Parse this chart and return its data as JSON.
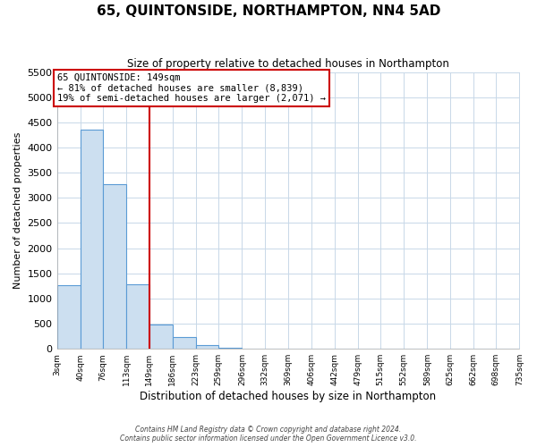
{
  "title": "65, QUINTONSIDE, NORTHAMPTON, NN4 5AD",
  "subtitle": "Size of property relative to detached houses in Northampton",
  "xlabel": "Distribution of detached houses by size in Northampton",
  "ylabel": "Number of detached properties",
  "bin_edges": [
    3,
    40,
    76,
    113,
    149,
    186,
    223,
    259,
    296,
    332,
    369,
    406,
    442,
    479,
    515,
    552,
    589,
    625,
    662,
    698,
    735
  ],
  "bin_labels": [
    "3sqm",
    "40sqm",
    "76sqm",
    "113sqm",
    "149sqm",
    "186sqm",
    "223sqm",
    "259sqm",
    "296sqm",
    "332sqm",
    "369sqm",
    "406sqm",
    "442sqm",
    "479sqm",
    "515sqm",
    "552sqm",
    "589sqm",
    "625sqm",
    "662sqm",
    "698sqm",
    "735sqm"
  ],
  "counts": [
    1270,
    4350,
    3280,
    1280,
    480,
    230,
    80,
    30,
    10,
    5,
    0,
    0,
    0,
    0,
    0,
    0,
    0,
    0,
    0,
    0
  ],
  "bar_color": "#ccdff0",
  "bar_edge_color": "#5b9bd5",
  "vline_x": 149,
  "vline_color": "#cc0000",
  "ylim": [
    0,
    5500
  ],
  "yticks": [
    0,
    500,
    1000,
    1500,
    2000,
    2500,
    3000,
    3500,
    4000,
    4500,
    5000,
    5500
  ],
  "annotation_text": "65 QUINTONSIDE: 149sqm\n← 81% of detached houses are smaller (8,839)\n19% of semi-detached houses are larger (2,071) →",
  "annotation_box_edge_color": "#cc0000",
  "annotation_box_face_color": "#ffffff",
  "footer_line1": "Contains HM Land Registry data © Crown copyright and database right 2024.",
  "footer_line2": "Contains public sector information licensed under the Open Government Licence v3.0.",
  "background_color": "#ffffff",
  "grid_color": "#c8d8e8"
}
